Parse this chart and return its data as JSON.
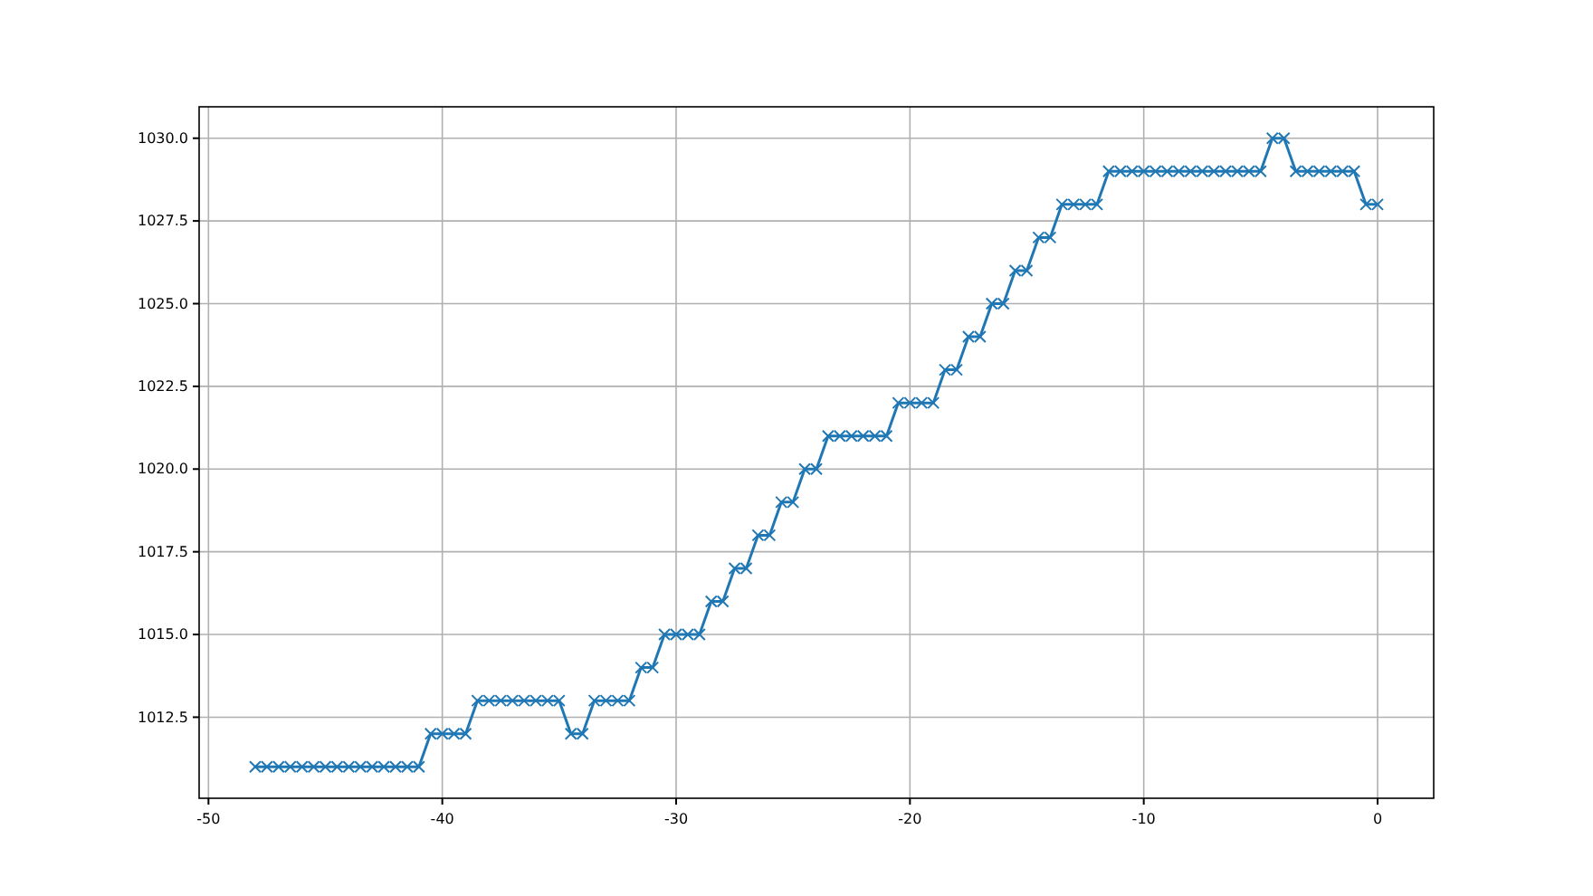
{
  "chart_data": {
    "type": "line",
    "x": [
      -48,
      -47.5,
      -47,
      -46.5,
      -46,
      -45.5,
      -45,
      -44.5,
      -44,
      -43.5,
      -43,
      -42.5,
      -42,
      -41.5,
      -41,
      -40.5,
      -40,
      -39.5,
      -39,
      -38.5,
      -38,
      -37.5,
      -37,
      -36.5,
      -36,
      -35.5,
      -35,
      -34.5,
      -34,
      -33.5,
      -33,
      -32.5,
      -32,
      -31.5,
      -31,
      -30.5,
      -30,
      -29.5,
      -29,
      -28.5,
      -28,
      -27.5,
      -27,
      -26.5,
      -26,
      -25.5,
      -25,
      -24.5,
      -24,
      -23.5,
      -23,
      -22.5,
      -22,
      -21.5,
      -21,
      -20.5,
      -20,
      -19.5,
      -19,
      -18.5,
      -18,
      -17.5,
      -17,
      -16.5,
      -16,
      -15.5,
      -15,
      -14.5,
      -14,
      -13.5,
      -13,
      -12.5,
      -12,
      -11.5,
      -11,
      -10.5,
      -10,
      -9.5,
      -9,
      -8.5,
      -8,
      -7.5,
      -7,
      -6.5,
      -6,
      -5.5,
      -5,
      -4.5,
      -4,
      -3.5,
      -3,
      -2.5,
      -2,
      -1.5,
      -1,
      -0.5,
      0
    ],
    "series": [
      {
        "color": "#1f77b4",
        "values": [
          1011,
          1011,
          1011,
          1011,
          1011,
          1011,
          1011,
          1011,
          1011,
          1011,
          1011,
          1011,
          1011,
          1011,
          1011,
          1012,
          1012,
          1012,
          1012,
          1013,
          1013,
          1013,
          1013,
          1013,
          1013,
          1013,
          1013,
          1012,
          1012,
          1013,
          1013,
          1013,
          1013,
          1014,
          1014,
          1015,
          1015,
          1015,
          1015,
          1016,
          1016,
          1017,
          1017,
          1018,
          1018,
          1019,
          1019,
          1020,
          1020,
          1021,
          1021,
          1021,
          1021,
          1021,
          1021,
          1022,
          1022,
          1022,
          1022,
          1023,
          1023,
          1024,
          1024,
          1025,
          1025,
          1026,
          1026,
          1027,
          1027,
          1028,
          1028,
          1028,
          1028,
          1029,
          1029,
          1029,
          1029,
          1029,
          1029,
          1029,
          1029,
          1029,
          1029,
          1029,
          1029,
          1029,
          1029,
          1030,
          1030,
          1029,
          1029,
          1029,
          1029,
          1029,
          1029,
          1028,
          1028
        ]
      }
    ],
    "xlim": [
      -50.4,
      2.4
    ],
    "xticks": [
      -50,
      -40,
      -30,
      -20,
      -10,
      0
    ],
    "ylim": [
      1010.05,
      1030.95
    ],
    "yticks": [
      {
        "value": 1012.5,
        "label": "1012.5"
      },
      {
        "value": 1015,
        "label": "1015.0"
      },
      {
        "value": 1017.5,
        "label": "1017.5"
      },
      {
        "value": 1020,
        "label": "1020.0"
      },
      {
        "value": 1022.5,
        "label": "1022.5"
      },
      {
        "value": 1025,
        "label": "1025.0"
      },
      {
        "value": 1027.5,
        "label": "1027.5"
      },
      {
        "value": 1030,
        "label": "1030.0"
      }
    ],
    "grid": true,
    "marker": "cross",
    "line_style": "solid"
  }
}
